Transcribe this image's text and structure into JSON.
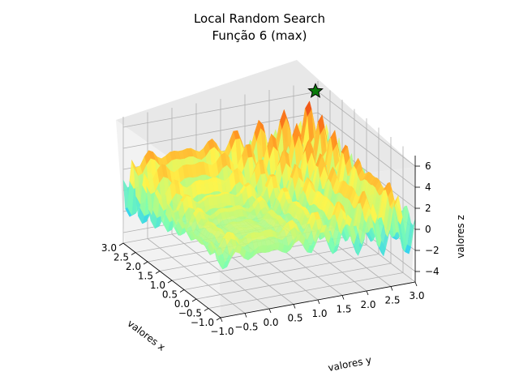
{
  "chart_data": {
    "type": "surface",
    "title": "Local Random Search",
    "subtitle": "Função 6 (max)",
    "xlabel": "valores x",
    "ylabel": "valores y",
    "zlabel": "valores z",
    "xlim": [
      -1.0,
      3.0
    ],
    "ylim": [
      -1.0,
      3.0
    ],
    "zlim": [
      -5,
      7
    ],
    "x_ticks": [
      "−1.0",
      "−0.5",
      "0.0",
      "0.5",
      "1.0",
      "1.5",
      "2.0",
      "2.5",
      "3.0"
    ],
    "y_ticks": [
      "−1.0",
      "−0.5",
      "0.0",
      "0.5",
      "1.0",
      "1.5",
      "2.0",
      "2.5",
      "3.0"
    ],
    "z_ticks": [
      "−4",
      "−2",
      "0",
      "2",
      "4",
      "6"
    ],
    "grid": true,
    "colormap": "jet",
    "surface_colors": [
      "#1f3cff",
      "#22c8ff",
      "#7fffb0",
      "#fff44a",
      "#ff8a1e",
      "#e01e10"
    ],
    "marker": {
      "x": 2.9,
      "y": 2.9,
      "z": 6.3,
      "symbol": "star",
      "color": "#0a7a0a"
    }
  }
}
